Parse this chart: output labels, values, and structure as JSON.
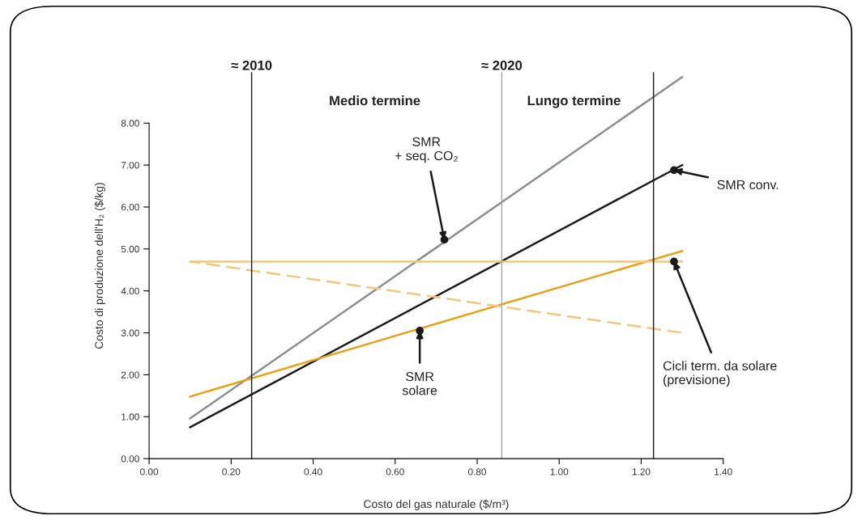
{
  "chart_data": {
    "type": "line",
    "xlabel": "Costo del gas naturale ($/m³)",
    "ylabel": "Costo di produzione dell'H₂ ($/kg)",
    "x": [
      0.1,
      1.3
    ],
    "series": [
      {
        "color": "#8a8f96",
        "values": [
          0.96,
          9.1
        ]
      },
      {
        "color": "#1a1a1a",
        "values": [
          0.75,
          7.0
        ]
      },
      {
        "color": "#e8a21a",
        "values": [
          1.48,
          4.95
        ]
      },
      {
        "color": "#f3c77a",
        "values": [
          4.7,
          4.7
        ]
      },
      {
        "color": "#f3c77a",
        "values": [
          4.7,
          3.0
        ],
        "line_style": "dashed"
      }
    ],
    "xlim": [
      0,
      1.4
    ],
    "ylim": [
      0,
      9.2
    ],
    "xticks": [
      {
        "value": 0,
        "label": "0.00"
      },
      {
        "value": 0.2,
        "label": "0.20"
      },
      {
        "value": 0.4,
        "label": "0.40"
      },
      {
        "value": 0.6,
        "label": "0.60"
      },
      {
        "value": 0.8,
        "label": "0.80"
      },
      {
        "value": 1.0,
        "label": "1.00"
      },
      {
        "value": 1.2,
        "label": "1.20"
      },
      {
        "value": 1.4,
        "label": "1.40"
      }
    ],
    "yticks": [
      {
        "value": 0,
        "label": "0.00"
      },
      {
        "value": 1,
        "label": "1.00"
      },
      {
        "value": 2,
        "label": "2.00"
      },
      {
        "value": 3,
        "label": "3.00"
      },
      {
        "value": 4,
        "label": "4.00"
      },
      {
        "value": 5,
        "label": "5.00"
      },
      {
        "value": 6,
        "label": "6.00"
      },
      {
        "value": 7,
        "label": "7.00"
      },
      {
        "value": 8,
        "label": "8.00"
      }
    ],
    "ref_lines": [
      {
        "axis": "x",
        "value": 0.25,
        "label": "≈ 2010",
        "color": "#1a1a1a"
      },
      {
        "axis": "x",
        "value": 0.86,
        "label": "≈ 2020",
        "color": "#a8a8a8"
      },
      {
        "axis": "x",
        "value": 1.23,
        "color": "#1a1a1a"
      }
    ],
    "annotations": [
      "Medio termine",
      "Lungo termine",
      {
        "text": "SMR\n+ seq. CO₂",
        "x": 0.72,
        "y": 5.22
      },
      {
        "text": "SMR conv.",
        "x": 1.28,
        "y": 6.88
      },
      {
        "text": "SMR solare",
        "x": 0.66,
        "y": 3.05
      },
      {
        "text": "Cicli term. da solare\n(previsione)",
        "x": 1.28,
        "y": 4.7
      }
    ],
    "grid": false,
    "marker": "none",
    "line_style": "solid"
  }
}
